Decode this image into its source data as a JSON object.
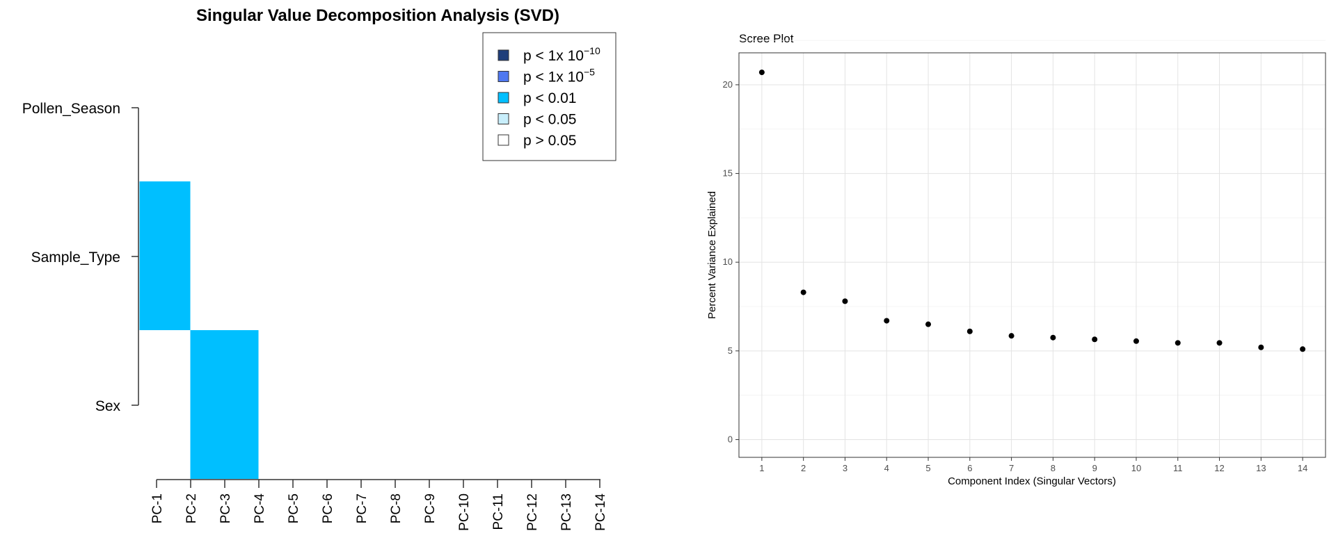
{
  "heatmap": {
    "title": "Singular Value Decomposition Analysis (SVD)",
    "rows": [
      "Pollen_Season",
      "Sample_Type",
      "Sex"
    ],
    "columns": [
      "PC-1",
      "PC-2",
      "PC-3",
      "PC-4",
      "PC-5",
      "PC-6",
      "PC-7",
      "PC-8",
      "PC-9",
      "PC-10",
      "PC-11",
      "PC-12",
      "PC-13",
      "PC-14"
    ],
    "legend": [
      {
        "base": "p < 1x 10",
        "sup": "−10",
        "color": "#1f3e7a",
        "level": 4
      },
      {
        "base": "p < 1x 10",
        "sup": "−5",
        "color": "#4f78f0",
        "level": 3
      },
      {
        "base": "p < 0.01",
        "sup": "",
        "color": "#00bfff",
        "level": 2
      },
      {
        "base": "p < 0.05",
        "sup": "",
        "color": "#c8eefb",
        "level": 1
      },
      {
        "base": "p > 0.05",
        "sup": "",
        "color": "#ffffff",
        "level": 0
      }
    ]
  },
  "scree": {
    "title": "Scree Plot",
    "xlabel": "Component Index (Singular Vectors)",
    "ylabel": "Percent Variance Explained"
  },
  "chart_data": [
    {
      "type": "heatmap",
      "title": "Singular Value Decomposition Analysis (SVD)",
      "rows": [
        "Pollen_Season",
        "Sample_Type",
        "Sex"
      ],
      "columns": [
        "PC-1",
        "PC-2",
        "PC-3",
        "PC-4",
        "PC-5",
        "PC-6",
        "PC-7",
        "PC-8",
        "PC-9",
        "PC-10",
        "PC-11",
        "PC-12",
        "PC-13",
        "PC-14"
      ],
      "significance_level_matrix": [
        [
          0,
          0,
          0,
          0,
          0,
          0,
          0,
          0,
          0,
          0,
          0,
          0,
          0,
          0
        ],
        [
          2,
          0,
          0,
          0,
          0,
          0,
          0,
          0,
          0,
          0,
          0,
          0,
          0,
          0
        ],
        [
          0,
          2,
          2,
          0,
          0,
          0,
          0,
          0,
          0,
          0,
          0,
          0,
          0,
          0
        ]
      ],
      "legend_position": "top-right"
    },
    {
      "type": "scatter",
      "title": "Scree Plot",
      "xlabel": "Component Index (Singular Vectors)",
      "ylabel": "Percent Variance Explained",
      "x": [
        1,
        2,
        3,
        4,
        5,
        6,
        7,
        8,
        9,
        10,
        11,
        12,
        13,
        14
      ],
      "y": [
        20.7,
        8.3,
        7.8,
        6.7,
        6.5,
        6.1,
        5.85,
        5.75,
        5.65,
        5.55,
        5.45,
        5.45,
        5.2,
        5.1
      ],
      "xticks": [
        1,
        2,
        3,
        4,
        5,
        6,
        7,
        8,
        9,
        10,
        11,
        12,
        13,
        14
      ],
      "yticks": [
        0,
        5,
        10,
        15,
        20
      ],
      "xlim": [
        0.45,
        14.55
      ],
      "ylim": [
        -1.0,
        21.8
      ],
      "grid": true
    }
  ]
}
